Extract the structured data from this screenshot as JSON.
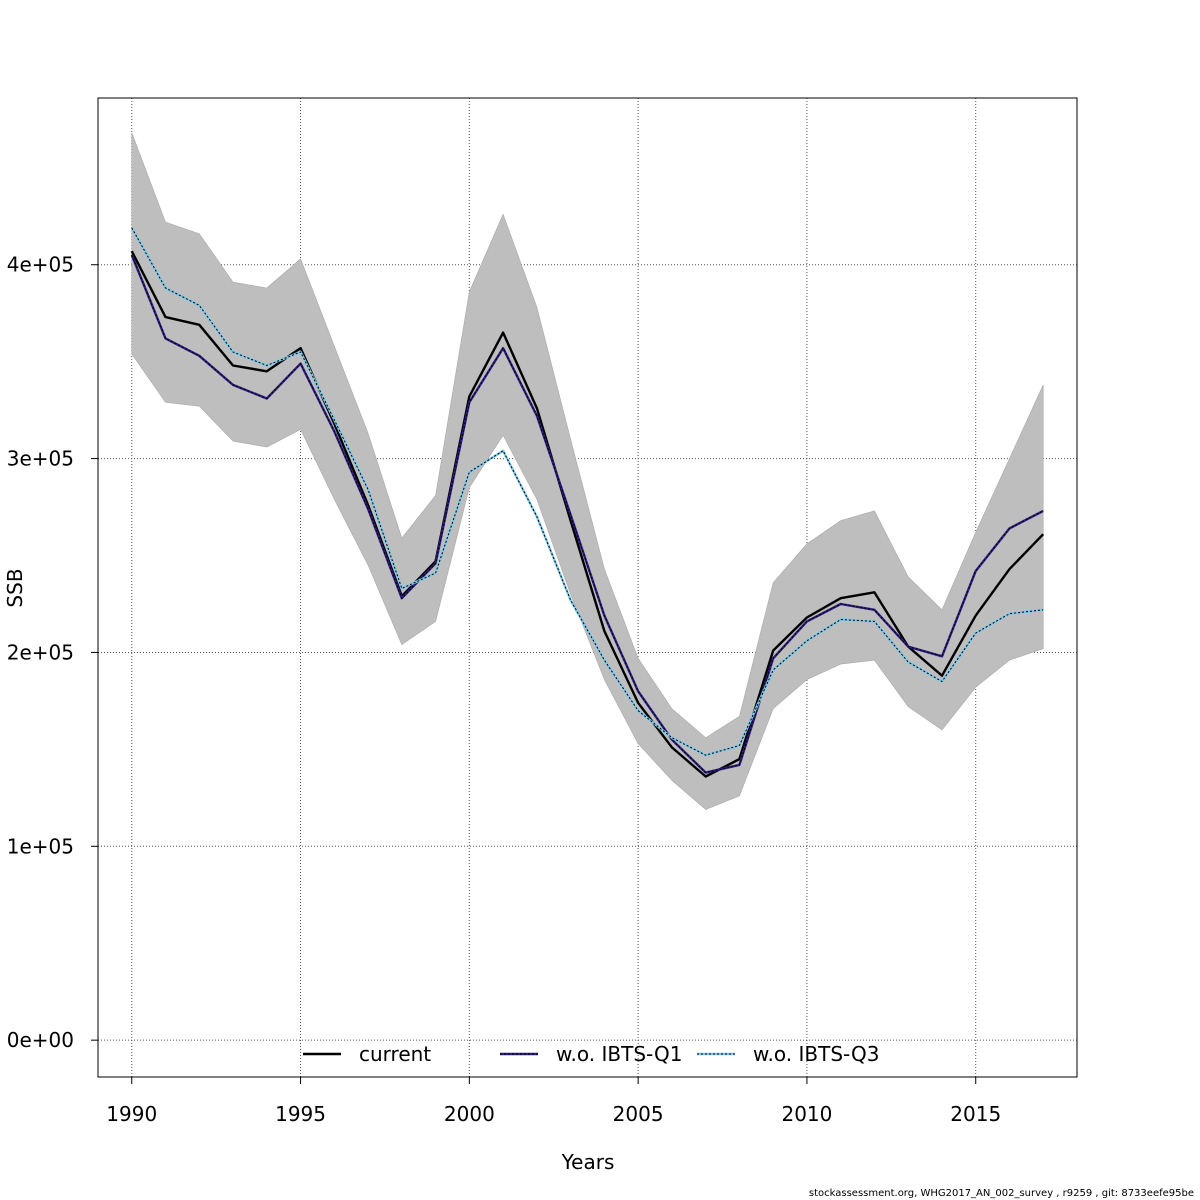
{
  "chart_data": {
    "type": "line",
    "title": "",
    "xlabel": "Years",
    "ylabel": "SSB",
    "xlim": [
      1989,
      2018
    ],
    "ylim": [
      -19000,
      486000
    ],
    "grid": true,
    "x_ticks": [
      1990,
      1995,
      2000,
      2005,
      2010,
      2015
    ],
    "x_tick_labels": [
      "1990",
      "1995",
      "2000",
      "2005",
      "2010",
      "2015"
    ],
    "y_ticks": [
      0,
      100000,
      200000,
      300000,
      400000
    ],
    "y_tick_labels": [
      "0e+00",
      "1e+05",
      "2e+05",
      "3e+05",
      "4e+05"
    ],
    "x": [
      1990,
      1991,
      1992,
      1993,
      1994,
      1995,
      1996,
      1997,
      1998,
      1999,
      2000,
      2001,
      2002,
      2003,
      2004,
      2005,
      2006,
      2007,
      2008,
      2009,
      2010,
      2011,
      2012,
      2013,
      2014,
      2015,
      2016,
      2017
    ],
    "band": {
      "upper": [
        468000,
        422000,
        416000,
        391000,
        388000,
        403000,
        358000,
        313000,
        259000,
        281000,
        386000,
        426000,
        378000,
        310000,
        243000,
        197000,
        171000,
        156000,
        167000,
        236000,
        256000,
        268000,
        273000,
        239000,
        222000,
        262000,
        300000,
        338000
      ],
      "lower": [
        354000,
        329000,
        327000,
        309000,
        306000,
        315000,
        279000,
        245000,
        204000,
        216000,
        285000,
        312000,
        279000,
        230000,
        186000,
        153000,
        134000,
        119000,
        126000,
        171000,
        186000,
        194000,
        196000,
        172000,
        160000,
        182000,
        196000,
        202000
      ],
      "color": "#bebebe"
    },
    "series": [
      {
        "name": "current",
        "color": "#000000",
        "style": "solid",
        "values": [
          407000,
          373000,
          369000,
          348000,
          345000,
          357000,
          318000,
          276000,
          229000,
          247000,
          332000,
          365000,
          326000,
          268000,
          211000,
          174000,
          151000,
          136000,
          145000,
          201000,
          218000,
          228000,
          231000,
          203000,
          188000,
          219000,
          243000,
          261000
        ]
      },
      {
        "name": "w.o. IBTS-Q1",
        "color": "#2e1e7f",
        "style": "solid-with-dotted",
        "values": [
          405000,
          362000,
          353000,
          338000,
          331000,
          349000,
          314000,
          274000,
          228000,
          246000,
          329000,
          357000,
          322000,
          271000,
          219000,
          180000,
          155000,
          138000,
          142000,
          197000,
          216000,
          225000,
          222000,
          203000,
          198000,
          242000,
          264000,
          273000
        ]
      },
      {
        "name": "w.o. IBTS-Q3",
        "color": "#7ec8ea",
        "style": "solid-with-dotted",
        "values": [
          419000,
          388000,
          379000,
          355000,
          348000,
          355000,
          320000,
          284000,
          233000,
          241000,
          293000,
          304000,
          270000,
          227000,
          196000,
          170000,
          156000,
          147000,
          152000,
          191000,
          206000,
          217000,
          216000,
          195000,
          185000,
          210000,
          220000,
          222000
        ]
      }
    ],
    "legend": {
      "position": "bottom-center",
      "entries": [
        "current",
        "w.o. IBTS-Q1",
        "w.o. IBTS-Q3"
      ]
    }
  },
  "footer": "stockassessment.org, WHG2017_AN_002_survey , r9259 , git: 8733eefe95be"
}
